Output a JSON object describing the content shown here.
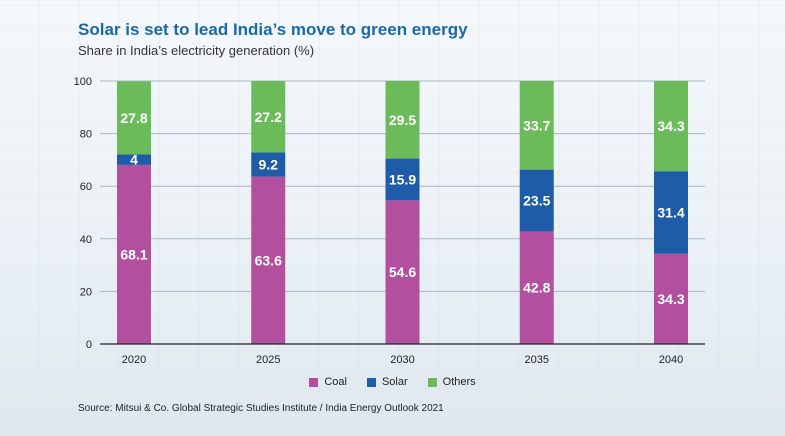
{
  "title": "Solar is set to lead India’s move to green energy",
  "subtitle": "Share in India’s electricity generation (%)",
  "source": "Source: Mitsui & Co. Global Strategic Studies Institute / India Energy Outlook 2021",
  "colors": {
    "coal": "#b34f9f",
    "solar": "#1f5ca8",
    "others": "#6cbb5a",
    "axis": "#222222",
    "grid": "#a8b8c6"
  },
  "chart_data": {
    "type": "bar",
    "stacked": true,
    "categories": [
      "2020",
      "2025",
      "2030",
      "2035",
      "2040"
    ],
    "series": [
      {
        "name": "Coal",
        "values": [
          68.1,
          63.6,
          54.6,
          42.8,
          34.3
        ]
      },
      {
        "name": "Solar",
        "values": [
          4,
          9.2,
          15.9,
          23.5,
          31.4
        ]
      },
      {
        "name": "Others",
        "values": [
          27.8,
          27.2,
          29.5,
          33.7,
          34.3
        ]
      }
    ],
    "value_labels": [
      [
        "68.1",
        "63.6",
        "54.6",
        "42.8",
        "34.3"
      ],
      [
        "4",
        "9.2",
        "15.9",
        "23.5",
        "31.4"
      ],
      [
        "27.8",
        "27.2",
        "29.5",
        "33.7",
        "34.3"
      ]
    ],
    "ylim": [
      0,
      100
    ],
    "yticks": [
      "0",
      "20",
      "40",
      "60",
      "80",
      "100"
    ],
    "grid": true,
    "legend_position": "bottom-center"
  },
  "legend": [
    {
      "label": "Coal",
      "color_key": "coal"
    },
    {
      "label": "Solar",
      "color_key": "solar"
    },
    {
      "label": "Others",
      "color_key": "others"
    }
  ]
}
